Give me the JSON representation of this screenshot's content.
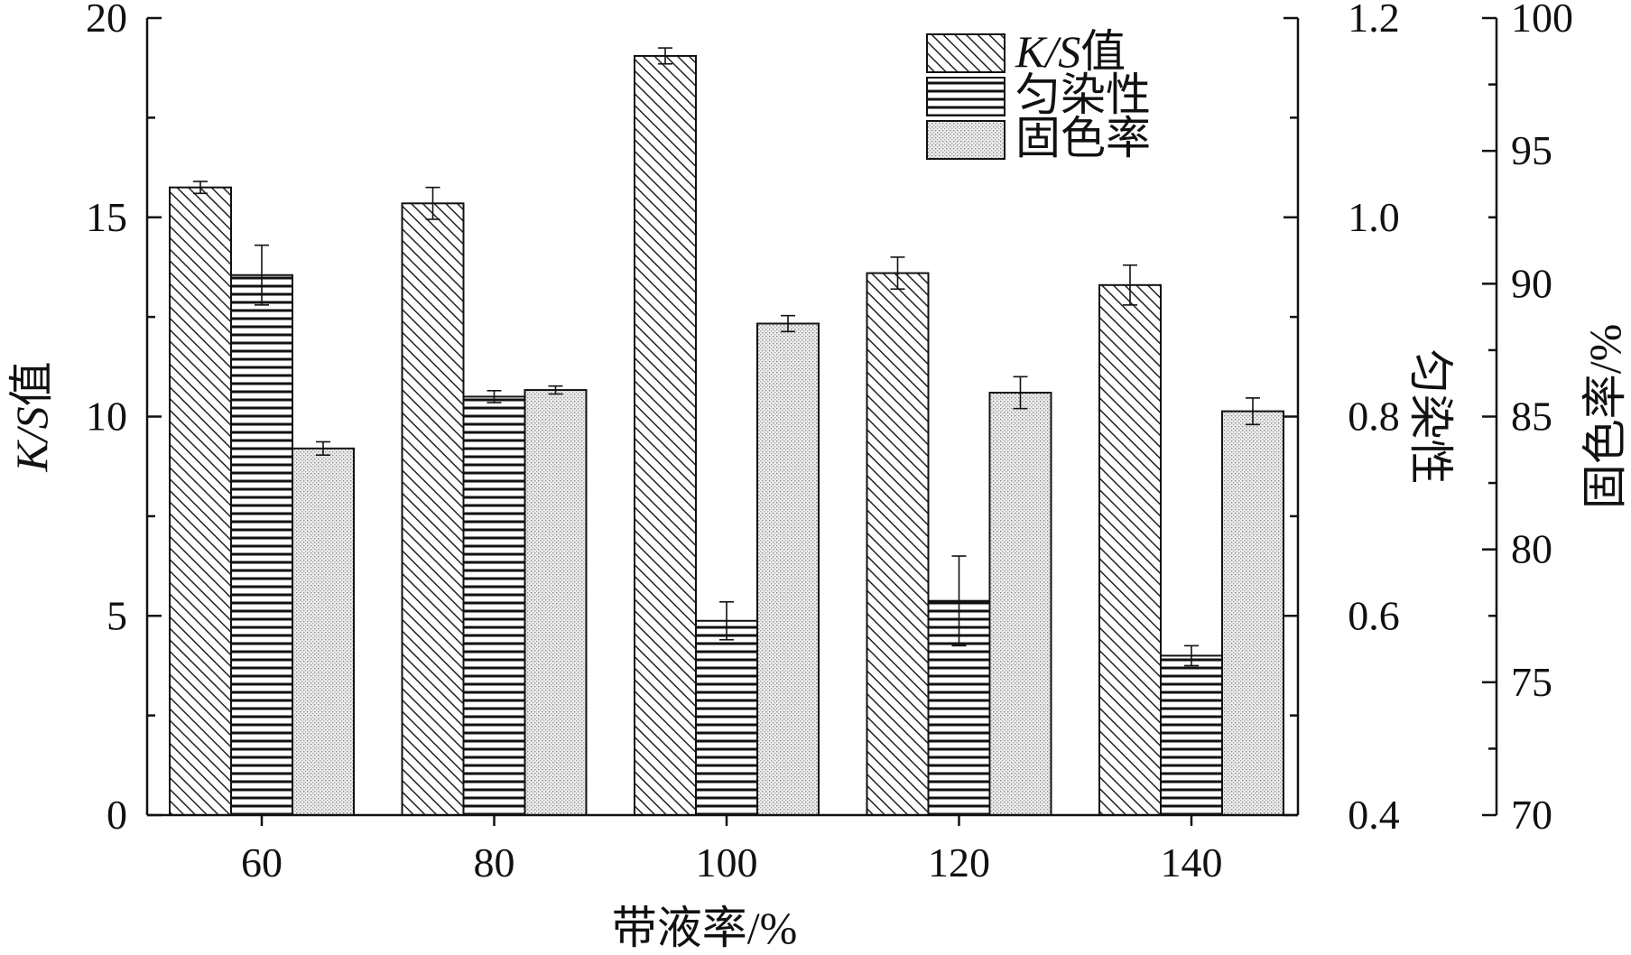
{
  "chart_data": {
    "type": "bar",
    "xlabel": "带液率/%",
    "categories": [
      "60",
      "80",
      "100",
      "120",
      "140"
    ],
    "axes": {
      "left": {
        "label": "K/S值",
        "label_italic_part": "K/S",
        "label_rest": "值",
        "ylim": [
          0,
          20
        ],
        "ticks": [
          "0",
          "5",
          "10",
          "15",
          "20"
        ]
      },
      "right1": {
        "label": "匀染性",
        "ylim": [
          0.4,
          1.2
        ],
        "ticks": [
          "0.4",
          "0.6",
          "0.8",
          "1.0",
          "1.2"
        ]
      },
      "right2": {
        "label": "固色率/%",
        "ylim": [
          70,
          100
        ],
        "ticks": [
          "70",
          "75",
          "80",
          "85",
          "90",
          "95",
          "100"
        ]
      }
    },
    "series": [
      {
        "name": "K/S值",
        "name_italic_part": "K/S",
        "name_rest": "值",
        "axis": "left",
        "pattern": "diagonal",
        "values": [
          15.75,
          15.35,
          19.05,
          13.6,
          13.3
        ],
        "errors": [
          0.15,
          0.4,
          0.2,
          0.4,
          0.5
        ]
      },
      {
        "name": "匀染性",
        "axis": "right1",
        "pattern": "horizontal",
        "values": [
          0.942,
          0.82,
          0.595,
          0.615,
          0.56
        ],
        "errors": [
          0.03,
          0.006,
          0.019,
          0.045,
          0.01
        ]
      },
      {
        "name": "固色率",
        "axis": "right2",
        "pattern": "dots",
        "values": [
          83.8,
          86.0,
          88.5,
          85.9,
          85.2
        ],
        "errors": [
          0.25,
          0.15,
          0.3,
          0.6,
          0.5
        ]
      }
    ],
    "legend_position": "top-right",
    "grid": false
  }
}
